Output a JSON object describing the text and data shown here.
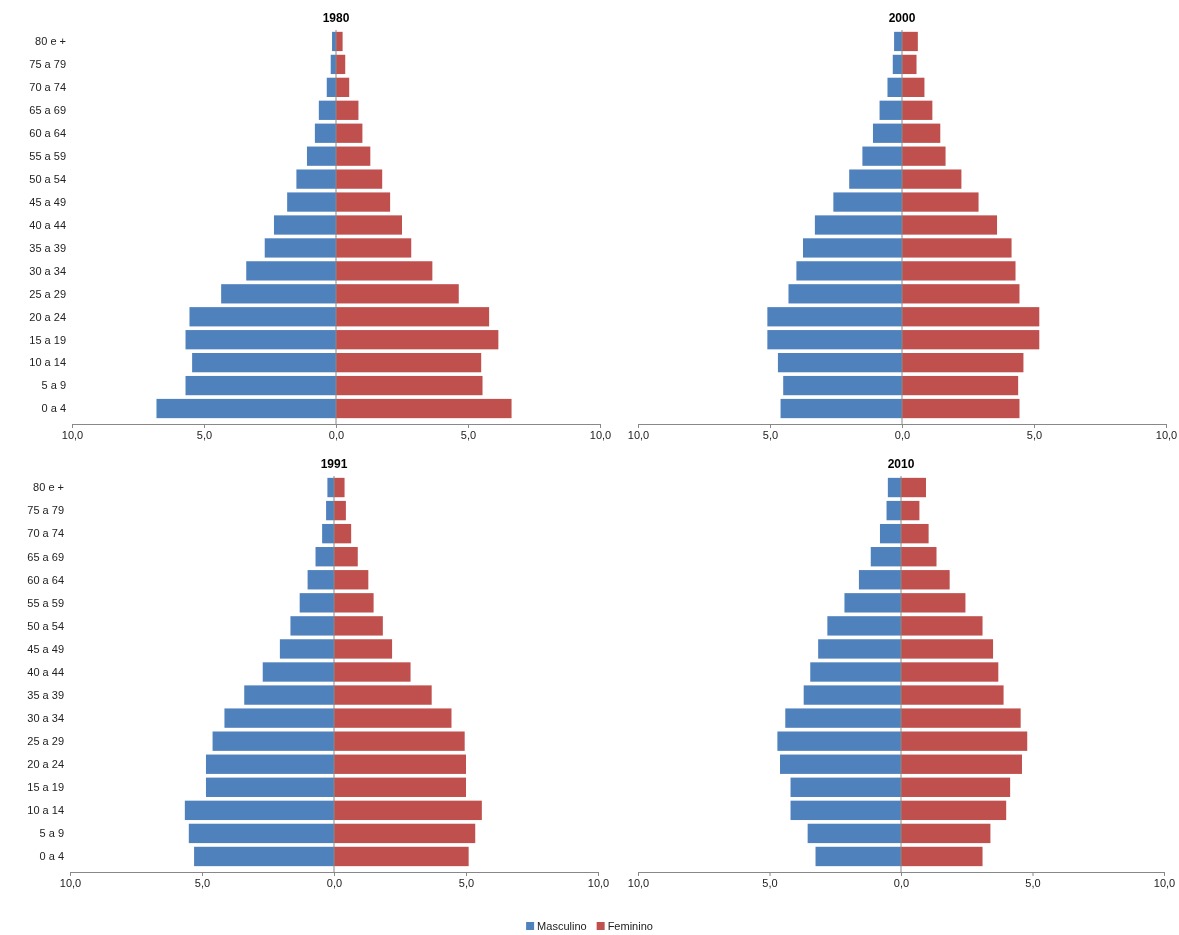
{
  "chart_data": [
    {
      "type": "bar",
      "title": "1980",
      "orientation": "horizontal",
      "stacked": true,
      "categories": [
        "80 e +",
        "75 a 79",
        "70 a 74",
        "65 a 69",
        "60 a 64",
        "55 a 59",
        "50 a 54",
        "45 a 49",
        "40 a 44",
        "35 a 39",
        "30 a 34",
        "25 a 29",
        "20 a 24",
        "15 a 19",
        "10 a 14",
        "5 a 9",
        "0 a 4"
      ],
      "series": [
        {
          "color": "#4f81bd",
          "values": [
            -0.15,
            -0.2,
            -0.35,
            -0.65,
            -0.8,
            -1.1,
            -1.5,
            -1.85,
            -2.35,
            -2.7,
            -3.4,
            -4.35,
            -5.55,
            -5.7,
            -5.45,
            -5.7,
            -6.8
          ]
        },
        {
          "color": "#c0504d",
          "values": [
            0.25,
            0.35,
            0.5,
            0.85,
            1.0,
            1.3,
            1.75,
            2.05,
            2.5,
            2.85,
            3.65,
            4.65,
            5.8,
            6.15,
            5.5,
            5.55,
            6.65
          ]
        }
      ],
      "xlim": [
        -10,
        10
      ],
      "xticks": [
        {
          "value": -10,
          "label": "10,0"
        },
        {
          "value": -5,
          "label": "5,0"
        },
        {
          "value": 0,
          "label": "0,0"
        },
        {
          "value": 5,
          "label": "5,0"
        },
        {
          "value": 10,
          "label": "10,0"
        }
      ]
    },
    {
      "type": "bar",
      "title": "2000",
      "orientation": "horizontal",
      "stacked": true,
      "tick_labels": "x",
      "categories": [
        null,
        null,
        null,
        null,
        null,
        null,
        null,
        null,
        null,
        null,
        null,
        null,
        null,
        null,
        null,
        null,
        null
      ],
      "series": [
        {
          "color": "#4f81bd",
          "values": [
            -0.3,
            -0.35,
            -0.55,
            -0.85,
            -1.1,
            -1.5,
            -2.0,
            -2.6,
            -3.3,
            -3.75,
            -4.0,
            -4.3,
            -5.1,
            -5.1,
            -4.7,
            -4.5,
            -4.6
          ]
        },
        {
          "color": "#c0504d",
          "values": [
            0.6,
            0.55,
            0.85,
            1.15,
            1.45,
            1.65,
            2.25,
            2.9,
            3.6,
            4.15,
            4.3,
            4.45,
            5.2,
            5.2,
            4.6,
            4.4,
            4.45
          ]
        }
      ],
      "xlim": [
        -10,
        10
      ],
      "xticks": [
        {
          "value": -10,
          "label": "10,0"
        },
        {
          "value": -5,
          "label": "5,0"
        },
        {
          "value": 0,
          "label": "0,0"
        },
        {
          "value": 5,
          "label": "5,0"
        },
        {
          "value": 10,
          "label": "10,0"
        }
      ]
    },
    {
      "type": "bar",
      "title": "1991",
      "orientation": "horizontal",
      "stacked": true,
      "categories": [
        "80 e +",
        "75 a 79",
        "70 a 74",
        "65 a 69",
        "60 a 64",
        "55 a 59",
        "50 a 54",
        "45 a 49",
        "40 a 44",
        "35 a 39",
        "30 a 34",
        "25 a 29",
        "20 a 24",
        "15 a 19",
        "10 a 14",
        "5 a 9",
        "0 a 4"
      ],
      "series": [
        {
          "color": "#4f81bd",
          "values": [
            -0.25,
            -0.3,
            -0.45,
            -0.7,
            -1.0,
            -1.3,
            -1.65,
            -2.05,
            -2.7,
            -3.4,
            -4.15,
            -4.6,
            -4.85,
            -4.85,
            -5.65,
            -5.5,
            -5.3
          ]
        },
        {
          "color": "#c0504d",
          "values": [
            0.4,
            0.45,
            0.65,
            0.9,
            1.3,
            1.5,
            1.85,
            2.2,
            2.9,
            3.7,
            4.45,
            4.95,
            5.0,
            5.0,
            5.6,
            5.35,
            5.1
          ]
        }
      ],
      "xlim": [
        -10,
        10
      ],
      "xticks": [
        {
          "value": -10,
          "label": "10,0"
        },
        {
          "value": -5,
          "label": "5,0"
        },
        {
          "value": 0,
          "label": "0,0"
        },
        {
          "value": 5,
          "label": "5,0"
        },
        {
          "value": 10,
          "label": "10,0"
        }
      ]
    },
    {
      "type": "bar",
      "title": "2010",
      "orientation": "horizontal",
      "stacked": true,
      "tick_labels": "x",
      "legend": "bottom",
      "categories": [
        null,
        null,
        null,
        null,
        null,
        null,
        null,
        null,
        null,
        null,
        null,
        null,
        null,
        null,
        null,
        null,
        null
      ],
      "series": [
        {
          "name": "Masculino",
          "color": "#4f81bd",
          "values": [
            -0.5,
            -0.55,
            -0.8,
            -1.15,
            -1.6,
            -2.15,
            -2.8,
            -3.15,
            -3.45,
            -3.7,
            -4.4,
            -4.7,
            -4.6,
            -4.2,
            -4.2,
            -3.55,
            -3.25
          ]
        },
        {
          "name": "Feminino",
          "color": "#c0504d",
          "values": [
            0.95,
            0.7,
            1.05,
            1.35,
            1.85,
            2.45,
            3.1,
            3.5,
            3.7,
            3.9,
            4.55,
            4.8,
            4.6,
            4.15,
            4.0,
            3.4,
            3.1
          ]
        }
      ],
      "xlim": [
        -10,
        10
      ],
      "xticks": [
        {
          "value": -10,
          "label": "10,0"
        },
        {
          "value": -5,
          "label": "5,0"
        },
        {
          "value": 0,
          "label": "0,0"
        },
        {
          "value": 5,
          "label": "5,0"
        },
        {
          "value": 10,
          "label": "10,0"
        }
      ]
    }
  ]
}
